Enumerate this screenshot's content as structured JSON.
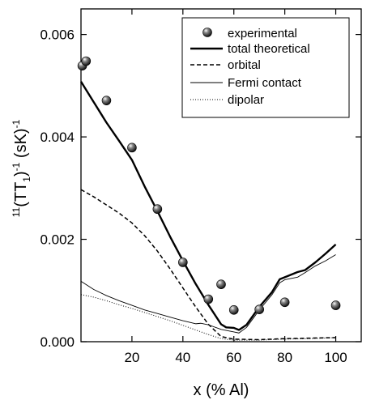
{
  "chart_data": {
    "type": "line",
    "xlabel": "x (% Al)",
    "ylabel": {
      "prefix": "11",
      "main": "(TT",
      "sub": "1",
      "close": ")",
      "sup": "-1",
      "unit": "(sK)",
      "unit_sup": "-1"
    },
    "xlim": [
      0,
      110
    ],
    "ylim": [
      0,
      0.0065
    ],
    "xticks": [
      20,
      40,
      60,
      80,
      100
    ],
    "yticks": [
      0.0,
      0.002,
      0.004,
      0.006
    ],
    "ytick_labels": [
      "0.000",
      "0.002",
      "0.004",
      "0.006"
    ],
    "xtick_labels": [
      "20",
      "40",
      "60",
      "80",
      "100"
    ],
    "legend_position": "top-right",
    "series": [
      {
        "name": "experimental",
        "style": "markers",
        "points": [
          [
            0.5,
            0.00539
          ],
          [
            2,
            0.00548
          ],
          [
            10,
            0.00471
          ],
          [
            20,
            0.00379
          ],
          [
            30,
            0.00259
          ],
          [
            40,
            0.00155
          ],
          [
            50,
            0.00083
          ],
          [
            55,
            0.00112
          ],
          [
            60,
            0.00062
          ],
          [
            70,
            0.00063
          ],
          [
            80,
            0.00077
          ],
          [
            100,
            0.00071
          ]
        ]
      },
      {
        "name": "total theoretical",
        "style": "solid-thick",
        "points": [
          [
            0,
            0.00508
          ],
          [
            5,
            0.00468
          ],
          [
            10,
            0.00428
          ],
          [
            15,
            0.00392
          ],
          [
            20,
            0.00355
          ],
          [
            25,
            0.00303
          ],
          [
            30,
            0.00255
          ],
          [
            35,
            0.00205
          ],
          [
            40,
            0.00158
          ],
          [
            45,
            0.00113
          ],
          [
            50,
            0.00072
          ],
          [
            55,
            0.00034
          ],
          [
            57,
            0.00028
          ],
          [
            60,
            0.00027
          ],
          [
            62,
            0.00023
          ],
          [
            65,
            0.00033
          ],
          [
            70,
            0.00068
          ],
          [
            75,
            0.00097
          ],
          [
            78,
            0.00122
          ],
          [
            80,
            0.00126
          ],
          [
            85,
            0.00136
          ],
          [
            88,
            0.0014
          ],
          [
            92,
            0.00155
          ],
          [
            96,
            0.00172
          ],
          [
            100,
            0.0019
          ]
        ]
      },
      {
        "name": "orbital",
        "style": "dashed",
        "points": [
          [
            0,
            0.00297
          ],
          [
            5,
            0.00283
          ],
          [
            10,
            0.00267
          ],
          [
            15,
            0.00251
          ],
          [
            20,
            0.00232
          ],
          [
            25,
            0.00207
          ],
          [
            30,
            0.00177
          ],
          [
            35,
            0.00142
          ],
          [
            40,
            0.00105
          ],
          [
            45,
            0.00068
          ],
          [
            50,
            0.00034
          ],
          [
            55,
            0.0001
          ],
          [
            60,
            5e-05
          ],
          [
            70,
            4e-05
          ],
          [
            80,
            6e-05
          ],
          [
            90,
            7e-05
          ],
          [
            100,
            8e-05
          ]
        ]
      },
      {
        "name": "Fermi contact",
        "style": "solid-thin",
        "points": [
          [
            0,
            0.00118
          ],
          [
            5,
            0.00102
          ],
          [
            10,
            0.0009
          ],
          [
            15,
            0.0008
          ],
          [
            20,
            0.00071
          ],
          [
            25,
            0.00062
          ],
          [
            30,
            0.00055
          ],
          [
            35,
            0.00048
          ],
          [
            40,
            0.00041
          ],
          [
            45,
            0.00035
          ],
          [
            47,
            0.00036
          ],
          [
            50,
            0.00033
          ],
          [
            55,
            0.00024
          ],
          [
            60,
            0.00019
          ],
          [
            62,
            0.00017
          ],
          [
            65,
            0.00028
          ],
          [
            70,
            0.00062
          ],
          [
            75,
            0.00092
          ],
          [
            78,
            0.00115
          ],
          [
            80,
            0.00121
          ],
          [
            85,
            0.00126
          ],
          [
            88,
            0.00135
          ],
          [
            92,
            0.00148
          ],
          [
            96,
            0.00158
          ],
          [
            100,
            0.0017
          ]
        ]
      },
      {
        "name": "dipolar",
        "style": "dotted",
        "points": [
          [
            0,
            0.00092
          ],
          [
            5,
            0.00087
          ],
          [
            10,
            0.0008
          ],
          [
            15,
            0.00072
          ],
          [
            20,
            0.00065
          ],
          [
            25,
            0.00057
          ],
          [
            30,
            0.00049
          ],
          [
            35,
            0.00041
          ],
          [
            40,
            0.00032
          ],
          [
            45,
            0.00023
          ],
          [
            50,
            0.00014
          ],
          [
            55,
            6e-05
          ],
          [
            60,
            3e-05
          ],
          [
            70,
            3e-05
          ],
          [
            80,
            5e-05
          ],
          [
            90,
            6e-05
          ],
          [
            100,
            8e-05
          ]
        ]
      }
    ]
  }
}
